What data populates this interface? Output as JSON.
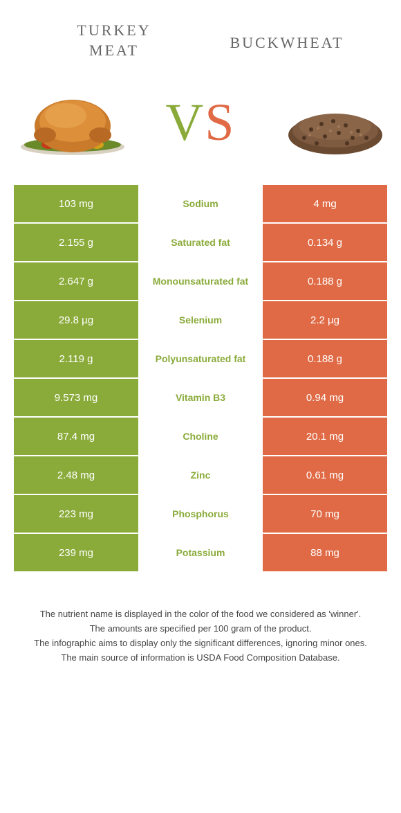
{
  "header": {
    "left_title_line1": "TURKEY",
    "left_title_line2": "MEAT",
    "right_title": "BUCKWHEAT",
    "vs_v": "V",
    "vs_s": "S"
  },
  "colors": {
    "left": "#8aab3a",
    "right": "#e06a45",
    "background": "#ffffff"
  },
  "table": {
    "rows": [
      {
        "left": "103 mg",
        "label": "Sodium",
        "winner": "left",
        "right": "4 mg"
      },
      {
        "left": "2.155 g",
        "label": "Saturated fat",
        "winner": "left",
        "right": "0.134 g"
      },
      {
        "left": "2.647 g",
        "label": "Monounsaturated fat",
        "winner": "left",
        "right": "0.188 g"
      },
      {
        "left": "29.8 µg",
        "label": "Selenium",
        "winner": "left",
        "right": "2.2 µg"
      },
      {
        "left": "2.119 g",
        "label": "Polyunsaturated fat",
        "winner": "left",
        "right": "0.188 g"
      },
      {
        "left": "9.573 mg",
        "label": "Vitamin B3",
        "winner": "left",
        "right": "0.94 mg"
      },
      {
        "left": "87.4 mg",
        "label": "Choline",
        "winner": "left",
        "right": "20.1 mg"
      },
      {
        "left": "2.48 mg",
        "label": "Zinc",
        "winner": "left",
        "right": "0.61 mg"
      },
      {
        "left": "223 mg",
        "label": "Phosphorus",
        "winner": "left",
        "right": "70 mg"
      },
      {
        "left": "239 mg",
        "label": "Potassium",
        "winner": "left",
        "right": "88 mg"
      }
    ]
  },
  "footer": {
    "line1": "The nutrient name is displayed in the color of the food we considered as 'winner'.",
    "line2": "The amounts are specified per 100 gram of the product.",
    "line3": "The infographic aims to display only the significant differences, ignoring minor ones.",
    "line4": "The main source of information is USDA Food Composition Database."
  }
}
